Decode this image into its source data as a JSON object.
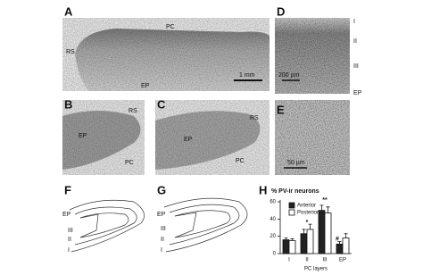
{
  "panels": [
    {
      "letter": "A",
      "labels": [
        "PC",
        "RS",
        "EP",
        "1 mm"
      ]
    },
    {
      "letter": "B",
      "labels": [
        "EP",
        "RS",
        "PC"
      ]
    },
    {
      "letter": "C",
      "labels": [
        "EP",
        "RS",
        "PC"
      ]
    },
    {
      "letter": "D",
      "labels": [
        "I",
        "II",
        "III",
        "EP",
        "200 µm"
      ]
    },
    {
      "letter": "E",
      "labels": [
        "50 µm"
      ]
    },
    {
      "letter": "F",
      "labels": [
        "EP",
        "III",
        "II",
        "I"
      ]
    },
    {
      "letter": "G",
      "labels": [
        "EP",
        "III",
        "II",
        "I"
      ]
    },
    {
      "letter": "H",
      "labels": []
    }
  ],
  "chart_data": {
    "type": "bar",
    "title": "% PV-ir neurons",
    "x_label": "PC layers",
    "categories": [
      "I",
      "II",
      "III",
      "EP"
    ],
    "series": [
      {
        "name": "Anterior",
        "color": "#222222",
        "values": [
          16,
          23,
          50,
          11
        ],
        "errors": [
          2,
          5,
          6,
          3
        ]
      },
      {
        "name": "Posterior",
        "color": "#ffffff",
        "values": [
          15,
          28,
          47,
          18
        ],
        "errors": [
          2,
          6,
          7,
          5
        ]
      }
    ],
    "ylim": [
      0,
      60
    ],
    "yticks": [
      0,
      20,
      40,
      60
    ],
    "annotations": [
      "*",
      "**",
      "#"
    ]
  }
}
